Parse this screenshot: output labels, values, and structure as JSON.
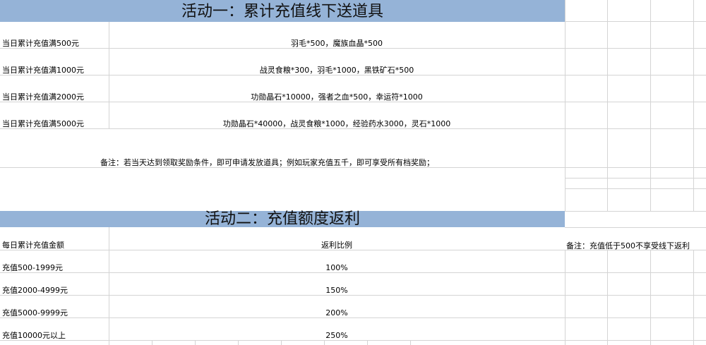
{
  "colors": {
    "header_band": "#95b3d7",
    "gridline": "#d4d4d4"
  },
  "activity1": {
    "title": "活动一：累计充值线下送道具",
    "rows": [
      {
        "condition": "当日累计充值满500元",
        "reward": "羽毛*500，魔族血晶*500"
      },
      {
        "condition": "当日累计充值满1000元",
        "reward": "战灵食粮*300，羽毛*1000，黑铁矿石*500"
      },
      {
        "condition": "当日累计充值满2000元",
        "reward": "功勋晶石*10000，强者之血*500，幸运符*1000"
      },
      {
        "condition": "当日累计充值满5000元",
        "reward": "功勋晶石*40000，战灵食粮*1000，经验药水3000，灵石*1000"
      }
    ],
    "note": "备注：若当天达到领取奖励条件，即可申请发放道具；例如玩家充值五千，即可享受所有档奖励；"
  },
  "activity2": {
    "title": "活动二：充值额度返利",
    "headers": {
      "amount": "每日累计充值金额",
      "ratio": "返利比例"
    },
    "rows": [
      {
        "amount": "充值500-1999元",
        "ratio": "100%"
      },
      {
        "amount": "充值2000-4999元",
        "ratio": "150%"
      },
      {
        "amount": "充值5000-9999元",
        "ratio": "200%"
      },
      {
        "amount": "充值10000元以上",
        "ratio": "250%"
      }
    ],
    "note": "备注：充值低于500不享受线下返利"
  }
}
